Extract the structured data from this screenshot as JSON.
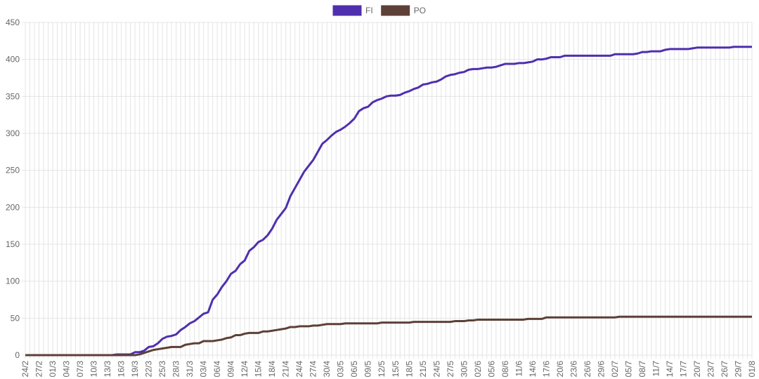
{
  "chart_data": {
    "type": "line",
    "categories": [
      "24/2",
      null,
      null,
      "27/2",
      null,
      null,
      "01/3",
      null,
      null,
      "04/3",
      null,
      null,
      "07/3",
      null,
      null,
      "10/3",
      null,
      null,
      "13/3",
      null,
      null,
      "16/3",
      null,
      null,
      "19/3",
      null,
      null,
      "22/3",
      null,
      null,
      "25/3",
      null,
      null,
      "28/3",
      null,
      null,
      "31/3",
      null,
      null,
      "03/4",
      null,
      null,
      "06/4",
      null,
      null,
      "09/4",
      null,
      null,
      "12/4",
      null,
      null,
      "15/4",
      null,
      null,
      "18/4",
      null,
      null,
      "21/4",
      null,
      null,
      "24/4",
      null,
      null,
      "27/4",
      null,
      null,
      "30/4",
      null,
      null,
      "03/5",
      null,
      null,
      "06/5",
      null,
      null,
      "09/5",
      null,
      null,
      "12/5",
      null,
      null,
      "15/5",
      null,
      null,
      "18/5",
      null,
      null,
      "21/5",
      null,
      null,
      "24/5",
      null,
      null,
      "27/5",
      null,
      null,
      "30/5",
      null,
      null,
      "02/6",
      null,
      null,
      "05/6",
      null,
      null,
      "08/6",
      null,
      null,
      "11/6",
      null,
      null,
      "14/6",
      null,
      null,
      "17/6",
      null,
      null,
      "20/6",
      null,
      null,
      "23/6",
      null,
      null,
      "26/6",
      null,
      null,
      "29/6",
      null,
      null,
      "02/7",
      null,
      null,
      "05/7",
      null,
      null,
      "08/7",
      null,
      null,
      "11/7",
      null,
      null,
      "14/7",
      null,
      null,
      "17/7",
      null,
      null,
      "20/7",
      null,
      null,
      "23/7",
      null,
      null,
      "26/7",
      null,
      null,
      "29/7",
      null,
      null,
      "01/8"
    ],
    "series": [
      {
        "name": "FI",
        "color": "#4f2fae",
        "values": [
          0,
          0,
          0,
          0,
          0,
          0,
          0,
          0,
          0,
          0,
          0,
          0,
          0,
          0,
          0,
          0,
          0,
          0,
          0,
          0,
          1,
          1,
          1,
          1,
          4,
          4,
          6,
          11,
          12,
          16,
          22,
          25,
          26,
          28,
          34,
          38,
          43,
          46,
          51,
          56,
          58,
          75,
          82,
          92,
          100,
          110,
          114,
          123,
          128,
          141,
          146,
          153,
          156,
          162,
          171,
          183,
          191,
          199,
          215,
          226,
          237,
          248,
          256,
          264,
          275,
          286,
          291,
          297,
          302,
          305,
          309,
          314,
          320,
          330,
          334,
          336,
          342,
          345,
          347,
          350,
          351,
          351,
          352,
          355,
          357,
          360,
          362,
          366,
          367,
          369,
          370,
          373,
          377,
          379,
          380,
          382,
          383,
          386,
          387,
          387,
          388,
          389,
          389,
          390,
          392,
          394,
          394,
          394,
          395,
          395,
          396,
          397,
          400,
          400,
          401,
          403,
          403,
          403,
          405,
          405,
          405,
          405,
          405,
          405,
          405,
          405,
          405,
          405,
          405,
          407,
          407,
          407,
          407,
          407,
          408,
          410,
          410,
          411,
          411,
          411,
          413,
          414,
          414,
          414,
          414,
          414,
          415,
          416,
          416,
          416,
          416,
          416,
          416,
          416,
          416,
          417,
          417,
          417,
          417,
          417
        ]
      },
      {
        "name": "PO",
        "color": "#5d4037",
        "values": [
          0,
          0,
          0,
          0,
          0,
          0,
          0,
          0,
          0,
          0,
          0,
          0,
          0,
          0,
          0,
          0,
          0,
          0,
          0,
          0,
          0,
          0,
          0,
          0,
          0,
          1,
          3,
          5,
          7,
          8,
          9,
          10,
          11,
          11,
          11,
          14,
          15,
          16,
          16,
          19,
          19,
          19,
          20,
          21,
          23,
          24,
          27,
          27,
          29,
          30,
          30,
          30,
          32,
          32,
          33,
          34,
          35,
          36,
          38,
          38,
          39,
          39,
          39,
          40,
          40,
          41,
          42,
          42,
          42,
          42,
          43,
          43,
          43,
          43,
          43,
          43,
          43,
          43,
          44,
          44,
          44,
          44,
          44,
          44,
          44,
          45,
          45,
          45,
          45,
          45,
          45,
          45,
          45,
          45,
          46,
          46,
          46,
          47,
          47,
          48,
          48,
          48,
          48,
          48,
          48,
          48,
          48,
          48,
          48,
          48,
          49,
          49,
          49,
          49,
          51,
          51,
          51,
          51,
          51,
          51,
          51,
          51,
          51,
          51,
          51,
          51,
          51,
          51,
          51,
          51,
          52,
          52,
          52,
          52,
          52,
          52,
          52,
          52,
          52,
          52,
          52,
          52,
          52,
          52,
          52,
          52,
          52,
          52,
          52,
          52,
          52,
          52,
          52,
          52,
          52,
          52,
          52,
          52,
          52,
          52
        ]
      }
    ],
    "ylim": [
      0,
      450
    ],
    "yticks": [
      0,
      50,
      100,
      150,
      200,
      250,
      300,
      350,
      400,
      450
    ],
    "grid": true,
    "legend": "top"
  }
}
